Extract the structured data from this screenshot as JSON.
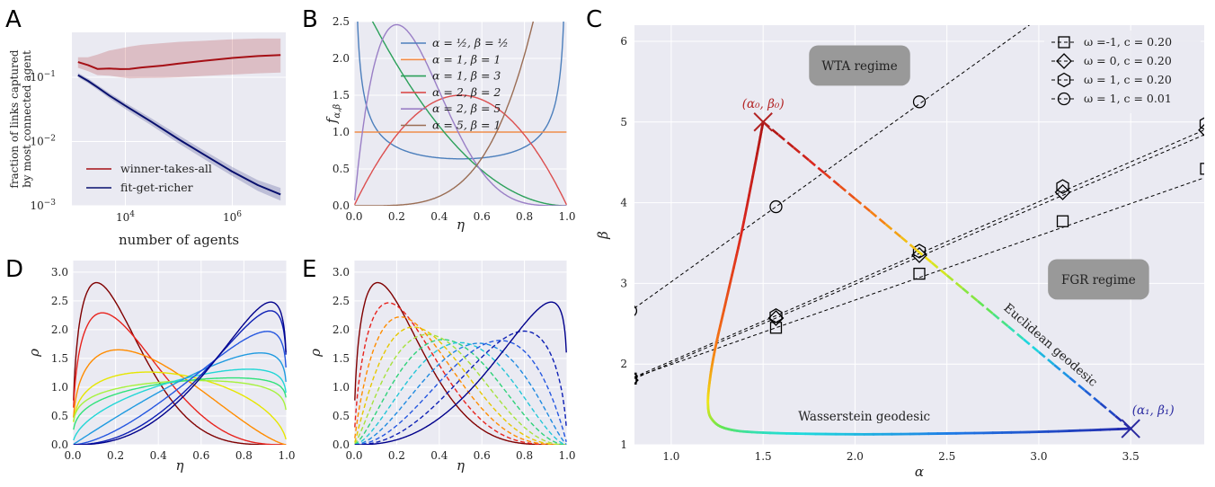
{
  "chart_data": [
    {
      "panel": "A",
      "type": "line",
      "xlabel": "number of agents",
      "ylabel_lines": [
        "fraction of links captured",
        "by most connected agent"
      ],
      "xscale": "log",
      "yscale": "log",
      "xlim": [
        1000,
        10000000
      ],
      "ylim": [
        0.001,
        0.5
      ],
      "xticks": [
        {
          "v": 10000,
          "base": "10",
          "exp": "4"
        },
        {
          "v": 1000000,
          "base": "10",
          "exp": "6"
        }
      ],
      "yticks": [
        {
          "v": 0.001,
          "base": "10",
          "exp": "−3"
        },
        {
          "v": 0.01,
          "base": "10",
          "exp": "−2"
        },
        {
          "v": 0.1,
          "base": "10",
          "exp": "−1"
        }
      ],
      "legend_position": "lower-left",
      "series": [
        {
          "name": "winner-takes-all",
          "color": "#a50f15",
          "x": [
            1300,
            2000,
            3000,
            5000,
            8000,
            12000,
            20000,
            50000,
            100000,
            300000,
            1000000,
            3000000,
            8000000
          ],
          "y": [
            0.172,
            0.155,
            0.135,
            0.137,
            0.134,
            0.135,
            0.142,
            0.152,
            0.163,
            0.181,
            0.2,
            0.214,
            0.222
          ],
          "lo": [
            0.14,
            0.125,
            0.108,
            0.106,
            0.1,
            0.096,
            0.097,
            0.098,
            0.1,
            0.105,
            0.11,
            0.115,
            0.118
          ],
          "hi": [
            0.205,
            0.205,
            0.225,
            0.26,
            0.28,
            0.3,
            0.32,
            0.34,
            0.355,
            0.37,
            0.39,
            0.4,
            0.4
          ]
        },
        {
          "name": "fit-get-richer",
          "color": "#08106e",
          "x": [
            1300,
            2000,
            3000,
            5000,
            10000,
            30000,
            100000,
            300000,
            1000000,
            3000000,
            8000000
          ],
          "y": [
            0.108,
            0.088,
            0.07,
            0.052,
            0.036,
            0.0205,
            0.0108,
            0.0062,
            0.0034,
            0.0021,
            0.0015
          ],
          "lo": [
            0.1,
            0.081,
            0.064,
            0.047,
            0.032,
            0.018,
            0.0093,
            0.0053,
            0.0029,
            0.0017,
            0.0012
          ],
          "hi": [
            0.117,
            0.096,
            0.076,
            0.057,
            0.04,
            0.0232,
            0.0125,
            0.0072,
            0.004,
            0.0025,
            0.0019
          ]
        }
      ]
    },
    {
      "panel": "B",
      "type": "line",
      "xlabel": "η",
      "ylabel_main": "f",
      "ylabel_sub": "α,β",
      "xlim": [
        0,
        1
      ],
      "ylim": [
        0,
        2.5
      ],
      "xticks": [
        0,
        0.2,
        0.4,
        0.6,
        0.8,
        1.0
      ],
      "yticks": [
        0,
        0.5,
        1.0,
        1.5,
        2.0,
        2.5
      ],
      "legend_position": "upper-right",
      "series": [
        {
          "alpha": "½",
          "beta": "½",
          "a": 0.5,
          "b": 0.5,
          "color": "#4c7fbc"
        },
        {
          "alpha": "1",
          "beta": "1",
          "a": 1,
          "b": 1,
          "color": "#f08c4a"
        },
        {
          "alpha": "1",
          "beta": "3",
          "a": 1,
          "b": 3,
          "color": "#2ca05a"
        },
        {
          "alpha": "2",
          "beta": "2",
          "a": 2,
          "b": 2,
          "color": "#dc4e4e"
        },
        {
          "alpha": "2",
          "beta": "5",
          "a": 2,
          "b": 5,
          "color": "#9a7fc6"
        },
        {
          "alpha": "5",
          "beta": "1",
          "a": 5,
          "b": 1,
          "color": "#9a6d54"
        }
      ]
    },
    {
      "panel": "C",
      "type": "line",
      "xlabel": "α",
      "ylabel": "β",
      "xlim": [
        0.8,
        3.9
      ],
      "ylim": [
        1.0,
        6.2
      ],
      "xticks": [
        1.0,
        1.5,
        2.0,
        2.5,
        3.0,
        3.5
      ],
      "yticks": [
        1,
        2,
        3,
        4,
        5,
        6
      ],
      "legend_position": "upper-right",
      "regime_labels": [
        "WTA regime",
        "FGR regime"
      ],
      "start_point": {
        "x": 1.5,
        "y": 5.0,
        "label": "(α₀, β₀)"
      },
      "end_point": {
        "x": 3.5,
        "y": 1.2,
        "label": "(α₁, β₁)"
      },
      "geodesic_labels": {
        "euclidean": "Euclidean geodesic",
        "wasserstein": "Wasserstein geodesic"
      },
      "wasserstein_path": {
        "x": [
          1.5,
          1.45,
          1.38,
          1.3,
          1.24,
          1.21,
          1.2,
          1.22,
          1.3,
          1.5,
          2.0,
          2.5,
          3.0,
          3.5
        ],
        "y": [
          5.0,
          4.4,
          3.6,
          2.8,
          2.2,
          1.8,
          1.5,
          1.32,
          1.2,
          1.15,
          1.13,
          1.14,
          1.16,
          1.2
        ]
      },
      "series": [
        {
          "omega": "-1",
          "c": "0.20",
          "marker": "square",
          "label": "ω =-1, c = 0.20",
          "x": [
            0.78,
            1.57,
            2.35,
            3.13,
            3.91
          ],
          "y": [
            1.82,
            2.45,
            3.12,
            3.77,
            4.42
          ]
        },
        {
          "omega": "0",
          "c": "0.20",
          "marker": "diamond",
          "label": "ω = 0, c = 0.20",
          "x": [
            0.78,
            1.57,
            2.35,
            3.13,
            3.91
          ],
          "y": [
            1.8,
            2.57,
            3.35,
            4.13,
            4.9
          ]
        },
        {
          "omega": "1",
          "c": "0.20",
          "marker": "hexagon",
          "label": "ω = 1, c = 0.20",
          "x": [
            0.78,
            1.57,
            2.35,
            3.13,
            3.91
          ],
          "y": [
            1.82,
            2.6,
            3.4,
            4.2,
            4.98
          ]
        },
        {
          "omega": "1",
          "c": "0.01",
          "marker": "circle",
          "label": "ω = 1, c = 0.01",
          "x": [
            0.78,
            1.57,
            2.35,
            3.13
          ],
          "y": [
            2.66,
            3.95,
            5.25,
            6.55
          ]
        }
      ]
    },
    {
      "panel": "D",
      "type": "line",
      "xlabel": "η",
      "ylabel": "ρ",
      "xlim": [
        0,
        1
      ],
      "ylim": [
        0,
        3.2
      ],
      "xticks": [
        0,
        0.2,
        0.4,
        0.6,
        0.8,
        1.0
      ],
      "yticks": [
        0,
        0.5,
        1.0,
        1.5,
        2.0,
        2.5,
        3.0
      ],
      "series": [
        {
          "a": 1.5,
          "b": 5.0,
          "color": "#800000"
        },
        {
          "a": 1.45,
          "b": 3.8,
          "color": "#e8231d"
        },
        {
          "a": 1.38,
          "b": 2.4,
          "color": "#ff8c00"
        },
        {
          "a": 1.3,
          "b": 1.55,
          "color": "#e6e600"
        },
        {
          "a": 1.22,
          "b": 1.15,
          "color": "#a6f23d"
        },
        {
          "a": 1.3,
          "b": 1.1,
          "color": "#30e27a"
        },
        {
          "a": 1.55,
          "b": 1.12,
          "color": "#22d6d6"
        },
        {
          "a": 2.0,
          "b": 1.14,
          "color": "#1f9ae0"
        },
        {
          "a": 2.6,
          "b": 1.16,
          "color": "#2456e0"
        },
        {
          "a": 3.2,
          "b": 1.18,
          "color": "#0d1fb4"
        },
        {
          "a": 3.5,
          "b": 1.2,
          "color": "#00008b"
        }
      ]
    },
    {
      "panel": "E",
      "type": "line",
      "xlabel": "η",
      "ylabel": "ρ",
      "xlim": [
        0,
        1
      ],
      "ylim": [
        0,
        3.2
      ],
      "xticks": [
        0,
        0.2,
        0.4,
        0.6,
        0.8,
        1.0
      ],
      "yticks": [
        0,
        0.5,
        1.0,
        1.5,
        2.0,
        2.5,
        3.0
      ],
      "series": [
        {
          "a": 1.5,
          "b": 5.0,
          "color": "#800000",
          "dash": false
        },
        {
          "a": 1.7,
          "b": 4.62,
          "color": "#e8231d",
          "dash": true
        },
        {
          "a": 1.9,
          "b": 4.24,
          "color": "#ff8c00",
          "dash": true
        },
        {
          "a": 2.1,
          "b": 3.86,
          "color": "#e6c800",
          "dash": true
        },
        {
          "a": 2.3,
          "b": 3.48,
          "color": "#a6e23d",
          "dash": true
        },
        {
          "a": 2.5,
          "b": 3.1,
          "color": "#30d27a",
          "dash": true
        },
        {
          "a": 2.7,
          "b": 2.72,
          "color": "#22c6d6",
          "dash": true
        },
        {
          "a": 2.9,
          "b": 2.34,
          "color": "#1f8ae0",
          "dash": true
        },
        {
          "a": 3.1,
          "b": 1.96,
          "color": "#2456e0",
          "dash": true
        },
        {
          "a": 3.3,
          "b": 1.58,
          "color": "#0d1fb4",
          "dash": true
        },
        {
          "a": 3.5,
          "b": 1.2,
          "color": "#00008b",
          "dash": false
        }
      ]
    }
  ]
}
